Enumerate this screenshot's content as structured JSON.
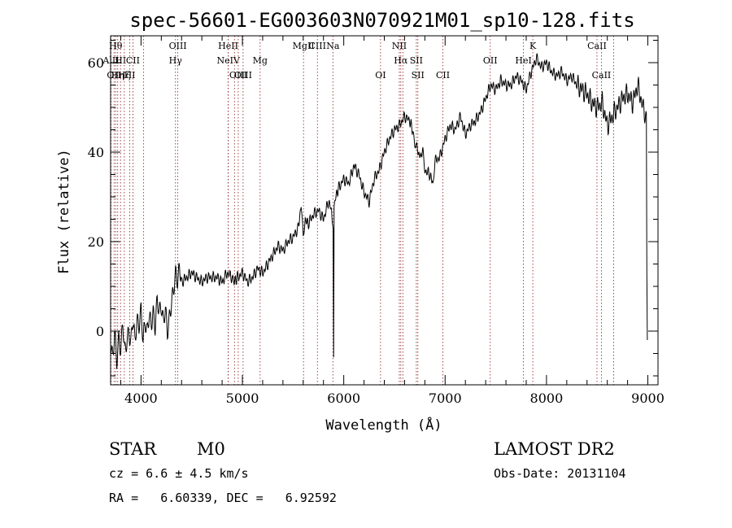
{
  "chart_data": {
    "type": "line",
    "title": "spec-56601-EG003603N070921M01_sp10-128.fits",
    "xlabel": "Wavelength (Å)",
    "ylabel": "Flux (relative)",
    "xlim": [
      3700,
      9100
    ],
    "ylim": [
      -12,
      66
    ],
    "xticks": [
      4000,
      5000,
      6000,
      7000,
      8000,
      9000
    ],
    "xtick_labels": [
      "4000",
      "5000",
      "6000",
      "7000",
      "8000",
      "9000"
    ],
    "yticks": [
      0,
      20,
      40,
      60
    ],
    "ytick_labels": [
      "0",
      "20",
      "40",
      "60"
    ],
    "grid": false,
    "series": [
      {
        "color": "#000000",
        "x": [
          3700,
          3720,
          3740,
          3760,
          3780,
          3800,
          3820,
          3840,
          3860,
          3880,
          3900,
          3920,
          3940,
          3960,
          3980,
          4000,
          4020,
          4040,
          4060,
          4080,
          4100,
          4120,
          4140,
          4160,
          4180,
          4200,
          4220,
          4240,
          4260,
          4280,
          4300,
          4320,
          4340,
          4360,
          4380,
          4400,
          4450,
          4500,
          4550,
          4600,
          4650,
          4700,
          4750,
          4800,
          4850,
          4900,
          4920,
          4950,
          5000,
          5050,
          5100,
          5150,
          5200,
          5250,
          5300,
          5350,
          5400,
          5450,
          5500,
          5550,
          5580,
          5600,
          5620,
          5650,
          5700,
          5750,
          5800,
          5850,
          5880,
          5895,
          5900,
          5905,
          5920,
          5950,
          6000,
          6050,
          6100,
          6150,
          6200,
          6250,
          6300,
          6350,
          6400,
          6450,
          6500,
          6550,
          6600,
          6650,
          6680,
          6700,
          6720,
          6750,
          6780,
          6800,
          6850,
          6880,
          6900,
          6950,
          7000,
          7050,
          7100,
          7150,
          7200,
          7250,
          7300,
          7350,
          7400,
          7450,
          7500,
          7550,
          7600,
          7650,
          7700,
          7750,
          7800,
          7850,
          7900,
          7950,
          8000,
          8050,
          8100,
          8150,
          8200,
          8250,
          8300,
          8350,
          8400,
          8450,
          8500,
          8550,
          8600,
          8650,
          8700,
          8750,
          8800,
          8850,
          8900,
          8950,
          8985,
          8990,
          8995
        ],
        "y": [
          -2,
          -6,
          -1,
          -8,
          -3,
          -5,
          2,
          -4,
          -1,
          1,
          -2,
          3,
          -3,
          1,
          0,
          4,
          -2,
          3,
          1,
          5,
          2,
          4,
          0,
          6,
          3,
          5,
          2,
          6,
          1,
          4,
          7,
          9,
          12,
          10,
          13,
          11,
          12,
          13,
          12,
          11,
          12,
          12,
          12,
          11,
          13,
          12,
          11,
          12,
          13,
          11,
          12,
          14,
          13,
          15,
          17,
          19,
          18,
          20,
          21,
          23,
          28,
          21,
          25,
          24,
          26,
          27,
          25,
          29,
          27,
          22,
          -6,
          28,
          30,
          32,
          34,
          33,
          37,
          35,
          31,
          29,
          34,
          36,
          40,
          43,
          45,
          46,
          48,
          47,
          45,
          42,
          41,
          39,
          40,
          36,
          35,
          33,
          38,
          39,
          43,
          46,
          45,
          48,
          44,
          46,
          47,
          49,
          52,
          55,
          54,
          56,
          55,
          55,
          57,
          56,
          54,
          58,
          61,
          59,
          60,
          58,
          57,
          58,
          56,
          57,
          55,
          54,
          53,
          51,
          50,
          51,
          46,
          48,
          50,
          52,
          53,
          51,
          55,
          50,
          48,
          12,
          -2
        ]
      }
    ],
    "lines": [
      {
        "x": 3704,
        "label": "AlII",
        "row": 2
      },
      {
        "x": 3734,
        "label": "OII",
        "row": 3
      },
      {
        "x": 3750,
        "label": "Hθ",
        "row": 1
      },
      {
        "x": 3770,
        "label": "Hη",
        "row": 3
      },
      {
        "x": 3798,
        "label": "HI",
        "row": 2
      },
      {
        "x": 3835,
        "label": "Hζ",
        "row": 3
      },
      {
        "x": 3889,
        "label": "HI",
        "row": 3
      },
      {
        "x": 3920,
        "label": "CII",
        "row": 2
      },
      {
        "x": 4026,
        "label": "",
        "row": 0
      },
      {
        "x": 4340,
        "label": "Hγ",
        "row": 2
      },
      {
        "x": 4363,
        "label": "OIII",
        "row": 1
      },
      {
        "x": 4860,
        "label": "HeII",
        "row": 1
      },
      {
        "x": 4861,
        "label": "NeIV",
        "row": 2
      },
      {
        "x": 4922,
        "label": "",
        "row": 0
      },
      {
        "x": 4959,
        "label": "OIII",
        "row": 3
      },
      {
        "x": 5007,
        "label": "OIII",
        "row": 3
      },
      {
        "x": 5175,
        "label": "Mg",
        "row": 2
      },
      {
        "x": 5603,
        "label": "MgII",
        "row": 1
      },
      {
        "x": 5740,
        "label": "CIII",
        "row": 1
      },
      {
        "x": 5893,
        "label": "Na",
        "row": 1
      },
      {
        "x": 6363,
        "label": "OI",
        "row": 3
      },
      {
        "x": 6548,
        "label": "NII",
        "row": 1
      },
      {
        "x": 6563,
        "label": "Hα",
        "row": 2
      },
      {
        "x": 6583,
        "label": "",
        "row": 0
      },
      {
        "x": 6716,
        "label": "SII",
        "row": 2
      },
      {
        "x": 6731,
        "label": "SII",
        "row": 3
      },
      {
        "x": 6978,
        "label": "CII",
        "row": 3
      },
      {
        "x": 7445,
        "label": "OII",
        "row": 2
      },
      {
        "x": 7773,
        "label": "HeI",
        "row": 2
      },
      {
        "x": 7865,
        "label": "K",
        "row": 1
      },
      {
        "x": 8498,
        "label": "CaII",
        "row": 1
      },
      {
        "x": 8542,
        "label": "CaII",
        "row": 3
      },
      {
        "x": 8662,
        "label": "",
        "row": 0
      }
    ]
  },
  "info": {
    "class_label": "STAR",
    "subclass": "M0",
    "survey": "LAMOST DR2",
    "cz": "cz = 6.6 ± 4.5 km/s",
    "obs_date": "Obs-Date: 20131104",
    "coords": "RA =   6.60339, DEC =   6.92592"
  }
}
